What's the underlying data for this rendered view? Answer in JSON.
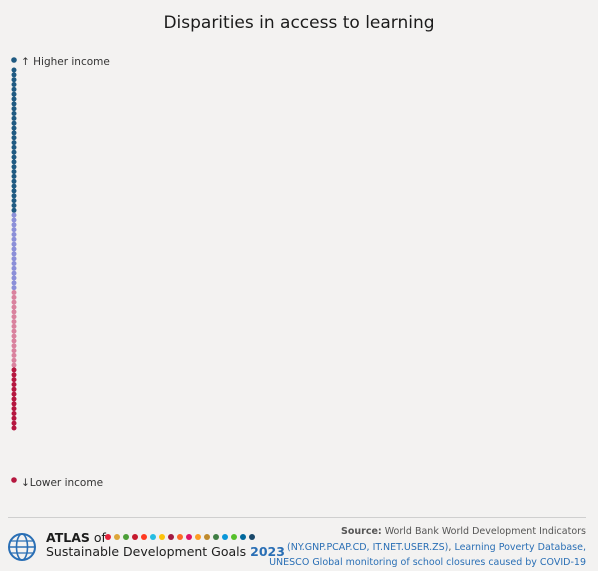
{
  "title": "Disparities in access to learning",
  "chart_data": {
    "type": "scatter",
    "title": "Disparities in access to learning",
    "axis_top_label": "↑ Higher income",
    "axis_bottom_label": "↓Lower income",
    "series": [
      {
        "group": "higher-income",
        "color": "#1f5a82",
        "count": 30
      },
      {
        "group": "upper-middle-income",
        "color": "#8b8fd8",
        "count": 16
      },
      {
        "group": "lower-middle-income",
        "color": "#d9829e",
        "count": 16
      },
      {
        "group": "low-income",
        "color": "#b5173f",
        "count": 13
      }
    ],
    "extreme_points": [
      {
        "group": "higher-income",
        "color": "#1f5a82"
      },
      {
        "group": "low-income",
        "color": "#b5173f"
      }
    ]
  },
  "footer": {
    "atlas_line1_bold": "ATLAS",
    "atlas_line1_rest": " of",
    "atlas_line2": "Sustainable Development Goals",
    "atlas_year": "2023",
    "source_label": "Source:",
    "source_line1": " World Bank World Development Indicators",
    "source_line2_link1": "(NY.GNP.PCAP.CD, IT.NET.USER.ZS)",
    "source_line2_sep": ", ",
    "source_line2_link2": "Learning Poverty Database,",
    "source_line3": "UNESCO Global monitoring of school closures caused by COVID-19"
  },
  "sdg_colors": [
    "#e5243b",
    "#dda63a",
    "#4c9f38",
    "#c5192d",
    "#ff3a21",
    "#26bde2",
    "#fcc30b",
    "#a21942",
    "#fd6925",
    "#dd1367",
    "#fd9d24",
    "#bf8b2e",
    "#3f7e44",
    "#0a97d9",
    "#56c02b",
    "#00689d",
    "#19486a"
  ]
}
